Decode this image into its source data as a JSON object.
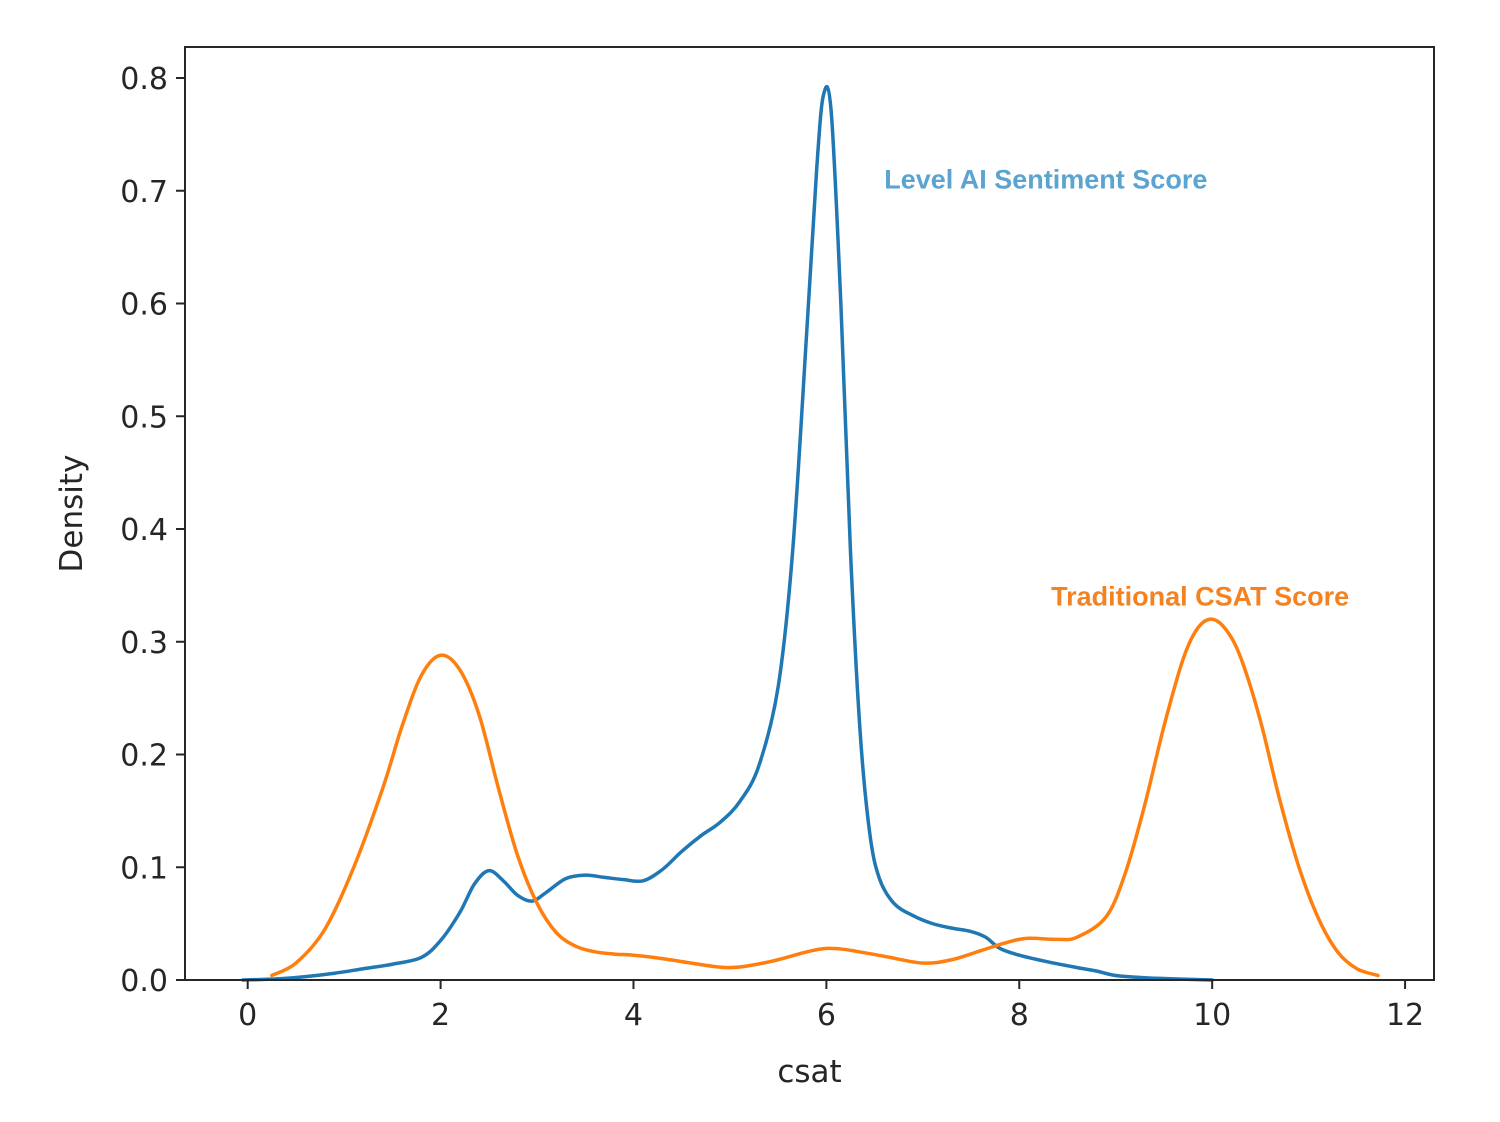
{
  "chart_data": {
    "type": "line",
    "subtype": "kde-density",
    "title": "",
    "xlabel": "csat",
    "ylabel": "Density",
    "xlim": [
      -0.65,
      12.3
    ],
    "ylim": [
      0,
      0.8275
    ],
    "xticks": [
      0,
      2,
      4,
      6,
      8,
      10,
      12
    ],
    "yticks": [
      0.0,
      0.1,
      0.2,
      0.3,
      0.4,
      0.5,
      0.6,
      0.7,
      0.8
    ],
    "xtick_labels": [
      "0",
      "2",
      "4",
      "6",
      "8",
      "10",
      "12"
    ],
    "ytick_labels": [
      "0.0",
      "0.1",
      "0.2",
      "0.3",
      "0.4",
      "0.5",
      "0.6",
      "0.7",
      "0.8"
    ],
    "grid": false,
    "legend": "none",
    "series": [
      {
        "name": "Level AI Sentiment Score",
        "color": "#1f77b4",
        "x": [
          -0.05,
          0.3,
          0.6,
          0.9,
          1.2,
          1.5,
          1.8,
          2.0,
          2.2,
          2.35,
          2.5,
          2.65,
          2.8,
          2.95,
          3.1,
          3.3,
          3.5,
          3.7,
          3.9,
          4.1,
          4.3,
          4.5,
          4.7,
          4.9,
          5.1,
          5.3,
          5.5,
          5.65,
          5.8,
          5.9,
          5.97,
          6.05,
          6.15,
          6.25,
          6.35,
          6.45,
          6.55,
          6.7,
          6.9,
          7.1,
          7.3,
          7.5,
          7.65,
          7.8,
          8.0,
          8.3,
          8.6,
          8.8,
          9.0,
          9.3,
          9.6,
          10.0
        ],
        "values": [
          0.0,
          0.001,
          0.003,
          0.006,
          0.01,
          0.014,
          0.02,
          0.035,
          0.06,
          0.085,
          0.097,
          0.088,
          0.075,
          0.07,
          0.078,
          0.09,
          0.093,
          0.091,
          0.089,
          0.088,
          0.098,
          0.114,
          0.128,
          0.14,
          0.158,
          0.19,
          0.26,
          0.38,
          0.58,
          0.72,
          0.785,
          0.77,
          0.6,
          0.38,
          0.22,
          0.13,
          0.09,
          0.068,
          0.057,
          0.05,
          0.046,
          0.043,
          0.038,
          0.028,
          0.022,
          0.016,
          0.011,
          0.008,
          0.004,
          0.002,
          0.001,
          0.0
        ]
      },
      {
        "name": "Traditional CSAT Score",
        "color": "#ff7f0e",
        "x": [
          0.25,
          0.5,
          0.8,
          1.1,
          1.4,
          1.6,
          1.8,
          2.0,
          2.2,
          2.4,
          2.6,
          2.8,
          3.0,
          3.2,
          3.4,
          3.6,
          3.8,
          4.0,
          4.3,
          4.6,
          5.0,
          5.4,
          5.8,
          6.0,
          6.2,
          6.6,
          7.0,
          7.3,
          7.6,
          7.9,
          8.1,
          8.4,
          8.6,
          8.9,
          9.1,
          9.3,
          9.5,
          9.7,
          9.85,
          10.0,
          10.15,
          10.3,
          10.5,
          10.7,
          10.9,
          11.1,
          11.3,
          11.5,
          11.72
        ],
        "values": [
          0.004,
          0.015,
          0.045,
          0.1,
          0.17,
          0.225,
          0.27,
          0.288,
          0.275,
          0.235,
          0.17,
          0.11,
          0.068,
          0.042,
          0.03,
          0.025,
          0.023,
          0.022,
          0.019,
          0.015,
          0.011,
          0.016,
          0.025,
          0.028,
          0.027,
          0.021,
          0.015,
          0.018,
          0.026,
          0.034,
          0.037,
          0.036,
          0.038,
          0.056,
          0.095,
          0.155,
          0.225,
          0.285,
          0.312,
          0.32,
          0.31,
          0.285,
          0.23,
          0.16,
          0.1,
          0.055,
          0.025,
          0.01,
          0.004
        ]
      }
    ],
    "annotations": [
      {
        "text": "Level AI Sentiment Score",
        "x": 6.6,
        "y": 0.71,
        "color": "#5ba3d0"
      },
      {
        "text": "Traditional CSAT Score",
        "x": 8.33,
        "y": 0.34,
        "color": "#f58220"
      }
    ]
  }
}
